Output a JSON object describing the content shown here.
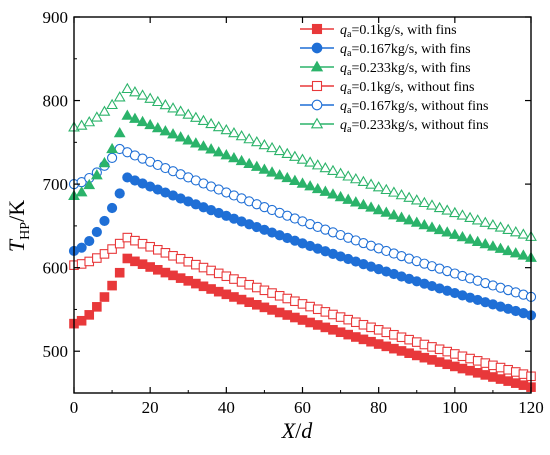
{
  "chart_data": {
    "type": "scatter",
    "title": "",
    "xlabel": {
      "main": "X",
      "sep": "/",
      "sub": "d"
    },
    "ylabel": {
      "main": "T",
      "sub": "HP",
      "unit": "/K"
    },
    "xlim": [
      0,
      120
    ],
    "ylim": [
      450,
      900
    ],
    "xticks": [
      "0",
      "20",
      "40",
      "60",
      "80",
      "100",
      "120"
    ],
    "yticks": [
      "500",
      "600",
      "700",
      "800",
      "900"
    ],
    "grid": false,
    "legend_position": "top-right",
    "x": [
      0,
      2,
      4,
      6,
      8,
      10,
      12,
      14,
      16,
      18,
      20,
      22,
      24,
      26,
      28,
      30,
      32,
      34,
      36,
      38,
      40,
      42,
      44,
      46,
      48,
      50,
      52,
      54,
      56,
      58,
      60,
      62,
      64,
      66,
      68,
      70,
      72,
      74,
      76,
      78,
      80,
      82,
      84,
      86,
      88,
      90,
      92,
      94,
      96,
      98,
      100,
      102,
      104,
      106,
      108,
      110,
      112,
      114,
      116,
      118,
      120
    ],
    "series": [
      {
        "name": "q_a=0.1kg/s, with fins",
        "legend": {
          "q": "q",
          "sub": "a",
          "rest": "=0.1kg/s, with fins"
        },
        "marker": "square",
        "filled": true,
        "color": "#e8383a",
        "peak_x": 14,
        "start": 533,
        "peak": 611,
        "end": 457
      },
      {
        "name": "q_a=0.167kg/s, with fins",
        "legend": {
          "q": "q",
          "sub": "a",
          "rest": "=0.167kg/s, with fins"
        },
        "marker": "circle",
        "filled": true,
        "color": "#1f6fd6",
        "peak_x": 14,
        "start": 620,
        "peak": 708,
        "end": 543
      },
      {
        "name": "q_a=0.233kg/s, with fins",
        "legend": {
          "q": "q",
          "sub": "a",
          "rest": "=0.233kg/s, with fins"
        },
        "marker": "triangle",
        "filled": true,
        "color": "#2bb36a",
        "peak_x": 14,
        "start": 686,
        "peak": 782,
        "end": 612
      },
      {
        "name": "q_a=0.1kg/s, without fins",
        "legend": {
          "q": "q",
          "sub": "a",
          "rest": "=0.1kg/s, without fins"
        },
        "marker": "square",
        "filled": false,
        "color": "#e8383a",
        "peak_x": 14,
        "start": 603,
        "peak": 636,
        "end": 470
      },
      {
        "name": "q_a=0.167kg/s, without fins",
        "legend": {
          "q": "q",
          "sub": "a",
          "rest": "=0.167kg/s, without fins"
        },
        "marker": "circle",
        "filled": false,
        "color": "#1f6fd6",
        "peak_x": 12,
        "start": 700,
        "peak": 742,
        "end": 565
      },
      {
        "name": "q_a=0.233kg/s, without fins",
        "legend": {
          "q": "q",
          "sub": "a",
          "rest": "=0.233kg/s, without fins"
        },
        "marker": "triangle",
        "filled": false,
        "color": "#2bb36a",
        "peak_x": 14,
        "start": 768,
        "peak": 814,
        "end": 637
      }
    ]
  }
}
